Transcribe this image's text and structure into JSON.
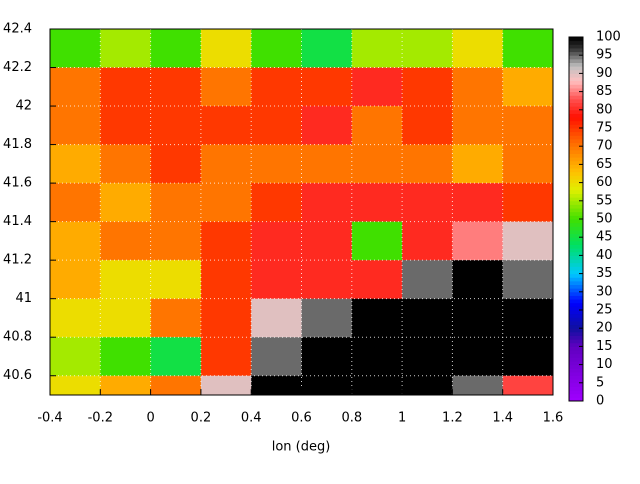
{
  "chart_data": {
    "type": "heatmap",
    "xlabel": "lon (deg)",
    "xlim": [
      -0.4,
      1.6
    ],
    "xticks": [
      -0.4,
      -0.2,
      0,
      0.2,
      0.4,
      0.6,
      0.8,
      1,
      1.2,
      1.4,
      1.6
    ],
    "ylim": [
      40.5,
      42.4
    ],
    "yticks": [
      40.6,
      40.8,
      41,
      41.2,
      41.4,
      41.6,
      41.8,
      42,
      42.2,
      42.4
    ],
    "grid": true,
    "clim": [
      0,
      100
    ],
    "cticks": [
      0,
      5,
      10,
      15,
      20,
      25,
      30,
      35,
      40,
      45,
      50,
      55,
      60,
      65,
      70,
      75,
      80,
      85,
      90,
      95,
      100
    ],
    "x": [
      -0.3,
      -0.1,
      0.1,
      0.3,
      0.5,
      0.7,
      0.9,
      1.1,
      1.3,
      1.5
    ],
    "y": [
      42.3,
      42.1,
      41.9,
      41.7,
      41.5,
      41.3,
      41.1,
      40.9,
      40.7,
      40.5
    ],
    "z": [
      [
        50,
        55,
        50,
        60,
        50,
        45,
        55,
        55,
        60,
        50
      ],
      [
        70,
        75,
        75,
        70,
        75,
        75,
        80,
        75,
        70,
        65
      ],
      [
        70,
        75,
        75,
        75,
        75,
        80,
        70,
        75,
        70,
        70
      ],
      [
        65,
        70,
        75,
        70,
        70,
        70,
        70,
        70,
        65,
        70
      ],
      [
        70,
        65,
        70,
        70,
        75,
        80,
        80,
        80,
        80,
        75
      ],
      [
        65,
        70,
        70,
        75,
        80,
        80,
        50,
        80,
        85,
        90
      ],
      [
        65,
        60,
        60,
        75,
        80,
        80,
        80,
        95,
        100,
        95
      ],
      [
        60,
        60,
        70,
        75,
        90,
        95,
        100,
        100,
        100,
        100
      ],
      [
        55,
        50,
        45,
        75,
        95,
        100,
        100,
        100,
        100,
        100
      ],
      [
        60,
        65,
        70,
        90,
        100,
        100,
        100,
        100,
        95,
        82
      ]
    ]
  }
}
